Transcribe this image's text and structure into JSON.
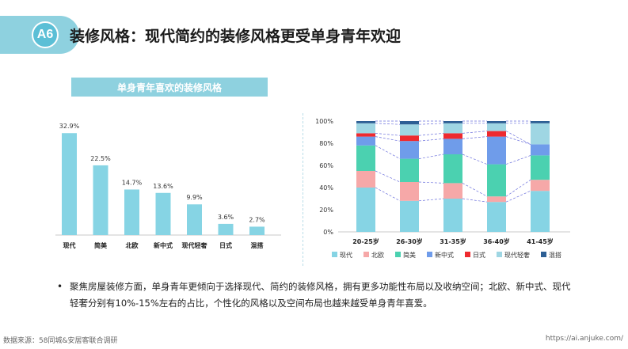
{
  "header": {
    "badge": "A6",
    "title": "装修风格：现代简约的装修风格更受单身青年欢迎"
  },
  "colors": {
    "bar": "#86d4e4",
    "accent": "#8ed1df",
    "series": [
      "#86d4e4",
      "#f6a8a8",
      "#4bd1b0",
      "#6f9cea",
      "#ee2a2f",
      "#9fd6e3",
      "#2d5f94"
    ]
  },
  "chart_data": [
    {
      "type": "bar",
      "title": "单身青年喜欢的装修风格",
      "categories": [
        "现代",
        "简美",
        "北欧",
        "新中式",
        "现代轻奢",
        "日式",
        "混搭"
      ],
      "values": [
        32.9,
        22.5,
        14.7,
        13.6,
        9.9,
        3.6,
        2.7
      ],
      "value_labels": [
        "32.9%",
        "22.5%",
        "14.7%",
        "13.6%",
        "9.9%",
        "3.6%",
        "2.7%"
      ],
      "ylim": [
        0,
        35
      ],
      "grid": false
    },
    {
      "type": "bar",
      "stacked": true,
      "categories": [
        "20-25岁",
        "26-30岁",
        "31-35岁",
        "36-40岁",
        "41-45岁"
      ],
      "yticks": [
        "0%",
        "20%",
        "40%",
        "60%",
        "80%",
        "100%"
      ],
      "ylim": [
        0,
        100
      ],
      "legend_position": "bottom",
      "series": [
        {
          "name": "现代",
          "values": [
            40,
            28,
            30,
            27,
            37
          ]
        },
        {
          "name": "北欧",
          "values": [
            15,
            17,
            14,
            5,
            10
          ]
        },
        {
          "name": "简美",
          "values": [
            23,
            21,
            26,
            29,
            22
          ]
        },
        {
          "name": "新中式",
          "values": [
            8,
            16,
            14,
            25,
            10
          ]
        },
        {
          "name": "日式",
          "values": [
            3,
            5,
            5,
            5,
            0
          ]
        },
        {
          "name": "现代轻奢",
          "values": [
            9,
            10,
            9,
            7,
            19
          ]
        },
        {
          "name": "混搭",
          "values": [
            2,
            3,
            2,
            2,
            2
          ]
        }
      ]
    }
  ],
  "note": "聚焦房屋装修方面，单身青年更倾向于选择现代、简约的装修风格，拥有更多功能性布局以及收纳空间；北欧、新中式、现代轻奢分别有10%-15%左右的占比，个性化的风格以及空间布局也越来越受单身青年喜爱。",
  "footer": {
    "source": "数据来源：58同城&安居客联合调研",
    "url": "https://ai.anjuke.com/"
  }
}
